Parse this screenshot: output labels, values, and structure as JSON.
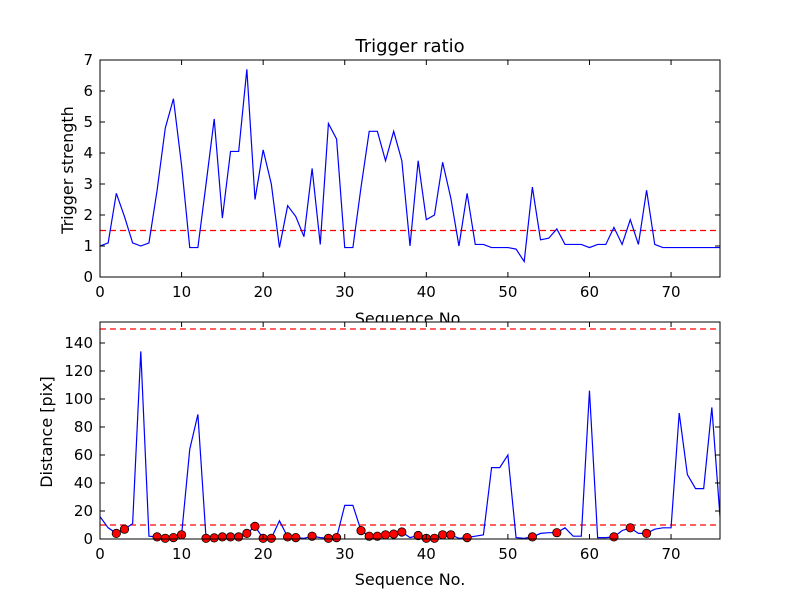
{
  "chart_data": [
    {
      "type": "line",
      "title": "Trigger ratio",
      "xlabel": "Sequence No.",
      "ylabel": "Trigger strength",
      "xlim": [
        0,
        76
      ],
      "ylim": [
        0,
        7
      ],
      "xticks": [
        0,
        10,
        20,
        30,
        40,
        50,
        60,
        70
      ],
      "yticks": [
        0,
        1,
        2,
        3,
        4,
        5,
        6,
        7
      ],
      "grid": false,
      "line_color": "#0000ff",
      "threshold": {
        "value": 1.5,
        "color": "#ff0000",
        "style": "dashed"
      },
      "series": [
        {
          "x": [
            0,
            1,
            2,
            3,
            4,
            5,
            6,
            7,
            8,
            9,
            10,
            11,
            12,
            13,
            14,
            15,
            16,
            17,
            18,
            19,
            20,
            21,
            22,
            23,
            24,
            25,
            26,
            27,
            28,
            29,
            30,
            31,
            32,
            33,
            34,
            35,
            36,
            37,
            38,
            39,
            40,
            41,
            42,
            43,
            44,
            45,
            46,
            47,
            48,
            49,
            50,
            51,
            52,
            53,
            54,
            55,
            56,
            57,
            58,
            59,
            60,
            61,
            62,
            63,
            64,
            65,
            66,
            67,
            68,
            69,
            70,
            71,
            72,
            73,
            74,
            75,
            76
          ],
          "y": [
            1.0,
            1.1,
            2.7,
            1.95,
            1.1,
            1.0,
            1.1,
            2.8,
            4.8,
            5.75,
            3.6,
            0.95,
            0.95,
            3.0,
            5.1,
            1.9,
            4.05,
            4.05,
            6.7,
            2.5,
            4.1,
            3.0,
            0.95,
            2.3,
            1.95,
            1.3,
            3.5,
            1.05,
            4.95,
            4.45,
            0.95,
            0.95,
            2.9,
            4.7,
            4.7,
            3.75,
            4.7,
            3.75,
            1.0,
            3.75,
            1.85,
            2.0,
            3.7,
            2.55,
            1.0,
            2.7,
            1.05,
            1.05,
            0.95,
            0.95,
            0.95,
            0.9,
            0.5,
            2.9,
            1.2,
            1.25,
            1.55,
            1.05,
            1.05,
            1.05,
            0.95,
            1.05,
            1.05,
            1.6,
            1.05,
            1.85,
            1.05,
            2.8,
            1.05,
            0.95,
            0.95,
            0.95,
            0.95,
            0.95,
            0.95,
            0.95,
            0.95
          ]
        }
      ]
    },
    {
      "type": "line",
      "title": "",
      "xlabel": "Sequence No.",
      "ylabel": "Distance [pix]",
      "xlim": [
        0,
        76
      ],
      "ylim": [
        0,
        155
      ],
      "xticks": [
        0,
        10,
        20,
        30,
        40,
        50,
        60,
        70
      ],
      "yticks": [
        0,
        20,
        40,
        60,
        80,
        100,
        120,
        140
      ],
      "grid": false,
      "line_color": "#0000ff",
      "marker_color": "#ff0000",
      "thresholds": [
        {
          "value": 150,
          "color": "#ff0000",
          "style": "dashed"
        },
        {
          "value": 10,
          "color": "#ff0000",
          "style": "dashed"
        }
      ],
      "series": [
        {
          "x": [
            0,
            1,
            2,
            3,
            4,
            5,
            6,
            7,
            8,
            9,
            10,
            11,
            12,
            13,
            14,
            15,
            16,
            17,
            18,
            19,
            20,
            21,
            22,
            23,
            24,
            25,
            26,
            27,
            28,
            29,
            30,
            31,
            32,
            33,
            34,
            35,
            36,
            37,
            38,
            39,
            40,
            41,
            42,
            43,
            44,
            45,
            46,
            47,
            48,
            49,
            50,
            51,
            52,
            53,
            54,
            55,
            56,
            57,
            58,
            59,
            60,
            61,
            62,
            63,
            64,
            65,
            66,
            67,
            68,
            69,
            70,
            71,
            72,
            73,
            74,
            75,
            76
          ],
          "y": [
            16,
            8,
            4,
            7,
            11,
            134,
            2,
            1.5,
            0.5,
            1,
            3,
            64,
            89,
            0.5,
            0.8,
            1.5,
            1.5,
            1.5,
            4,
            9,
            0.5,
            0.5,
            13,
            1.5,
            1,
            0.5,
            2,
            1,
            0.5,
            1,
            24,
            24,
            6,
            2,
            2,
            3,
            3.5,
            5,
            1,
            2.5,
            0.5,
            0.5,
            3,
            3,
            0.5,
            1,
            2,
            3,
            51,
            51,
            60,
            1,
            0.5,
            1.5,
            4,
            4.5,
            4.5,
            8,
            2,
            2,
            106,
            1,
            1,
            1.5,
            6,
            8,
            4,
            4,
            7,
            8,
            8,
            90,
            46,
            36,
            36,
            94,
            16
          ]
        }
      ],
      "markers": {
        "x": [
          2,
          3,
          7,
          8,
          9,
          10,
          13,
          14,
          15,
          16,
          17,
          18,
          19,
          20,
          21,
          23,
          24,
          26,
          28,
          29,
          32,
          33,
          34,
          35,
          36,
          37,
          39,
          40,
          41,
          42,
          43,
          45,
          53,
          56,
          63,
          65,
          67
        ],
        "y": [
          4,
          7,
          1.5,
          0.5,
          1,
          3,
          0.5,
          0.8,
          1.5,
          1.5,
          1.5,
          4,
          9,
          0.5,
          0.5,
          1.5,
          1,
          2,
          0.5,
          1,
          6,
          2,
          2,
          3,
          3.5,
          5,
          2.5,
          0.5,
          0.5,
          3,
          3,
          1,
          1.5,
          4.5,
          1.5,
          8,
          4
        ]
      }
    }
  ]
}
